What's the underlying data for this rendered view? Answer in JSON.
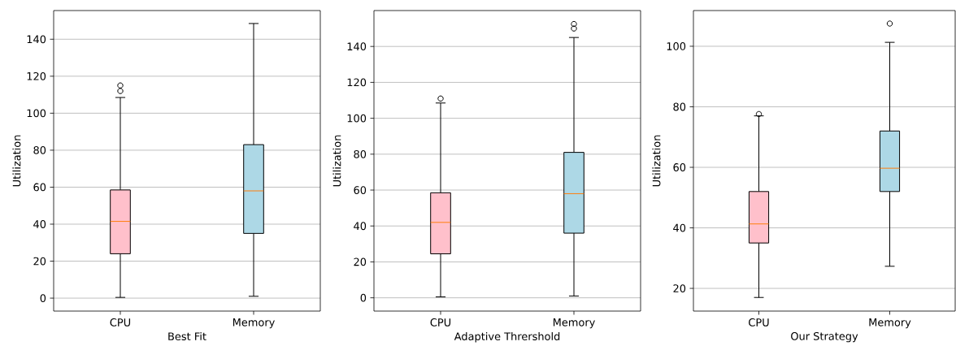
{
  "chart_data": [
    {
      "type": "box",
      "xlabel": "Best Fit",
      "ylabel": "Utilization",
      "categories": [
        "CPU",
        "Memory"
      ],
      "colors": [
        "#ffc0cb",
        "#add8e6"
      ],
      "ylim": [
        -7,
        155.5
      ],
      "yticks": [
        0,
        20,
        40,
        60,
        80,
        100,
        120,
        140
      ],
      "grid": "y",
      "boxes": [
        {
          "low": 0.4,
          "q1": 24,
          "median": 41.5,
          "q3": 58.5,
          "high": 108.5,
          "outliers": [
            112,
            115
          ]
        },
        {
          "low": 1,
          "q1": 35,
          "median": 58,
          "q3": 83,
          "high": 148.5
        }
      ]
    },
    {
      "type": "box",
      "xlabel": "Adaptive Thrershold",
      "ylabel": "Utilization",
      "categories": [
        "CPU",
        "Memory"
      ],
      "colors": [
        "#ffc0cb",
        "#add8e6"
      ],
      "ylim": [
        -7.4,
        160
      ],
      "yticks": [
        0,
        20,
        40,
        60,
        80,
        100,
        120,
        140
      ],
      "grid": "y",
      "boxes": [
        {
          "low": 0.5,
          "q1": 24.5,
          "median": 42,
          "q3": 58.5,
          "high": 108.5,
          "outliers": [
            111
          ]
        },
        {
          "low": 1,
          "q1": 36,
          "median": 58,
          "q3": 81,
          "high": 145,
          "outliers": [
            150,
            152.5
          ]
        }
      ]
    },
    {
      "type": "box",
      "xlabel": "Our Strategy",
      "ylabel": "Utilization",
      "categories": [
        "CPU",
        "Memory"
      ],
      "colors": [
        "#ffc0cb",
        "#add8e6"
      ],
      "ylim": [
        12.5,
        111.8
      ],
      "yticks": [
        20,
        40,
        60,
        80,
        100
      ],
      "grid": "y",
      "boxes": [
        {
          "low": 17,
          "q1": 35,
          "median": 41.3,
          "q3": 52,
          "high": 77,
          "outliers": [
            77.6
          ]
        },
        {
          "low": 27.3,
          "q1": 52,
          "median": 59.7,
          "q3": 72,
          "high": 101.3,
          "outliers": [
            107.5
          ]
        }
      ]
    }
  ]
}
